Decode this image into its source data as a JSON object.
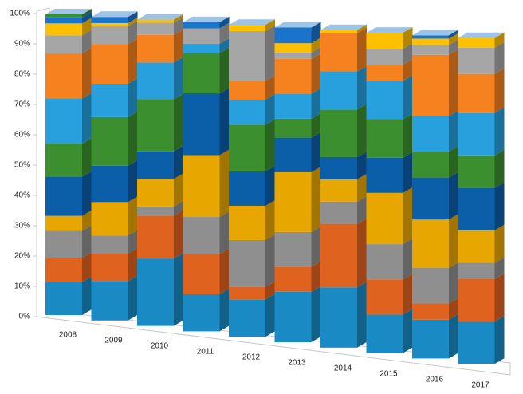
{
  "chart_data": {
    "type": "stacked-bar-3d",
    "categories": [
      "2008",
      "2009",
      "2010",
      "2011",
      "2012",
      "2013",
      "2014",
      "2015",
      "2016",
      "2017"
    ],
    "series": [
      {
        "color": "#1a8ac4",
        "values": [
          11,
          13,
          22,
          12,
          12,
          16,
          19,
          12,
          12,
          13
        ]
      },
      {
        "color": "#e0621f",
        "values": [
          8,
          9,
          14,
          13,
          4,
          8,
          20,
          11,
          5,
          13
        ]
      },
      {
        "color": "#8f8f8f",
        "values": [
          9,
          6,
          3,
          12,
          15,
          11,
          7,
          11,
          11,
          5
        ]
      },
      {
        "color": "#e8a600",
        "values": [
          5,
          11,
          9,
          20,
          11,
          19,
          7,
          16,
          15,
          10
        ]
      },
      {
        "color": "#0b5ea8",
        "values": [
          13,
          12,
          9,
          20,
          11,
          11,
          7,
          11,
          13,
          13
        ]
      },
      {
        "color": "#3b8f2f",
        "values": [
          11,
          16,
          17,
          13,
          15,
          6,
          15,
          12,
          8,
          10
        ]
      },
      {
        "color": "#27a0dd",
        "values": [
          15,
          11,
          12,
          3,
          8,
          8,
          12,
          12,
          11,
          13
        ]
      },
      {
        "color": "#f5821f",
        "values": [
          15,
          13,
          9,
          0,
          6,
          11,
          12,
          5,
          19,
          12
        ]
      },
      {
        "color": "#a6a6a6",
        "values": [
          6,
          6,
          4,
          5,
          16,
          2,
          0,
          5,
          3,
          8
        ]
      },
      {
        "color": "#ffc000",
        "values": [
          4,
          1,
          1,
          0,
          2,
          3,
          1,
          5,
          2,
          3
        ]
      },
      {
        "color": "#1a74cc",
        "values": [
          2,
          2,
          0,
          2,
          0,
          5,
          0,
          0,
          1,
          0
        ]
      },
      {
        "color": "#3b8f2f",
        "values": [
          1,
          0,
          0,
          0,
          0,
          0,
          0,
          0,
          0,
          0
        ]
      }
    ],
    "ylim": [
      0,
      100
    ],
    "yticks": [
      {
        "value": 0,
        "label": "0%"
      },
      {
        "value": 10,
        "label": "10%"
      },
      {
        "value": 20,
        "label": "20%"
      },
      {
        "value": 30,
        "label": "30%"
      },
      {
        "value": 40,
        "label": "40%"
      },
      {
        "value": 50,
        "label": "50%"
      },
      {
        "value": 60,
        "label": "60%"
      },
      {
        "value": 70,
        "label": "70%"
      },
      {
        "value": 80,
        "label": "80%"
      },
      {
        "value": 90,
        "label": "90%"
      },
      {
        "value": 100,
        "label": "100%"
      }
    ],
    "grid": false
  }
}
